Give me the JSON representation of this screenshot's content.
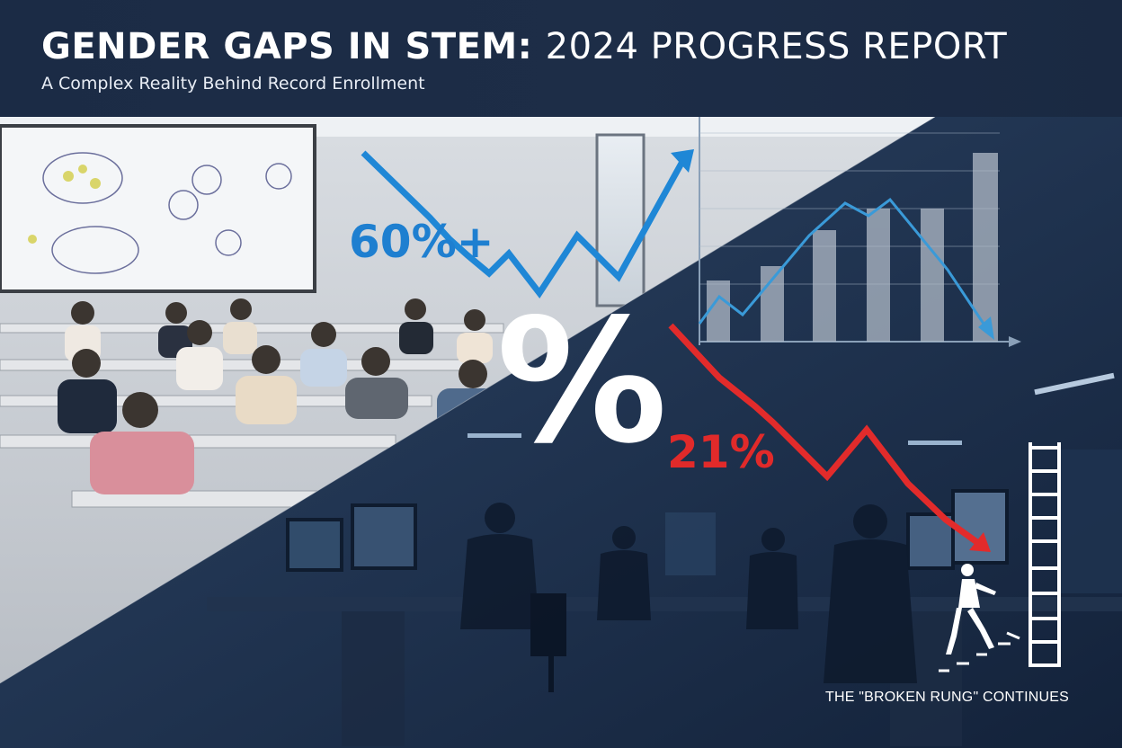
{
  "header": {
    "title_bold": "GENDER GAPS IN STEM:",
    "title_light": "2024 PROGRESS REPORT",
    "subtitle": "A Complex Reality Behind Record Enrollment"
  },
  "stats": {
    "enrollment": "60%+",
    "workforce": "21%",
    "symbol": "%"
  },
  "caption": "THE \"BROKEN RUNG\" CONTINUES",
  "icons": [
    "trend-up-arrow-icon",
    "trend-down-arrow-icon",
    "woman-climbing-ladder-icon",
    "bar-chart-icon"
  ],
  "colors": {
    "header_bg": "#1b2b45",
    "enrollment_blue": "#1e7fd0",
    "workforce_red": "#e12a2a",
    "text_white": "#ffffff"
  }
}
